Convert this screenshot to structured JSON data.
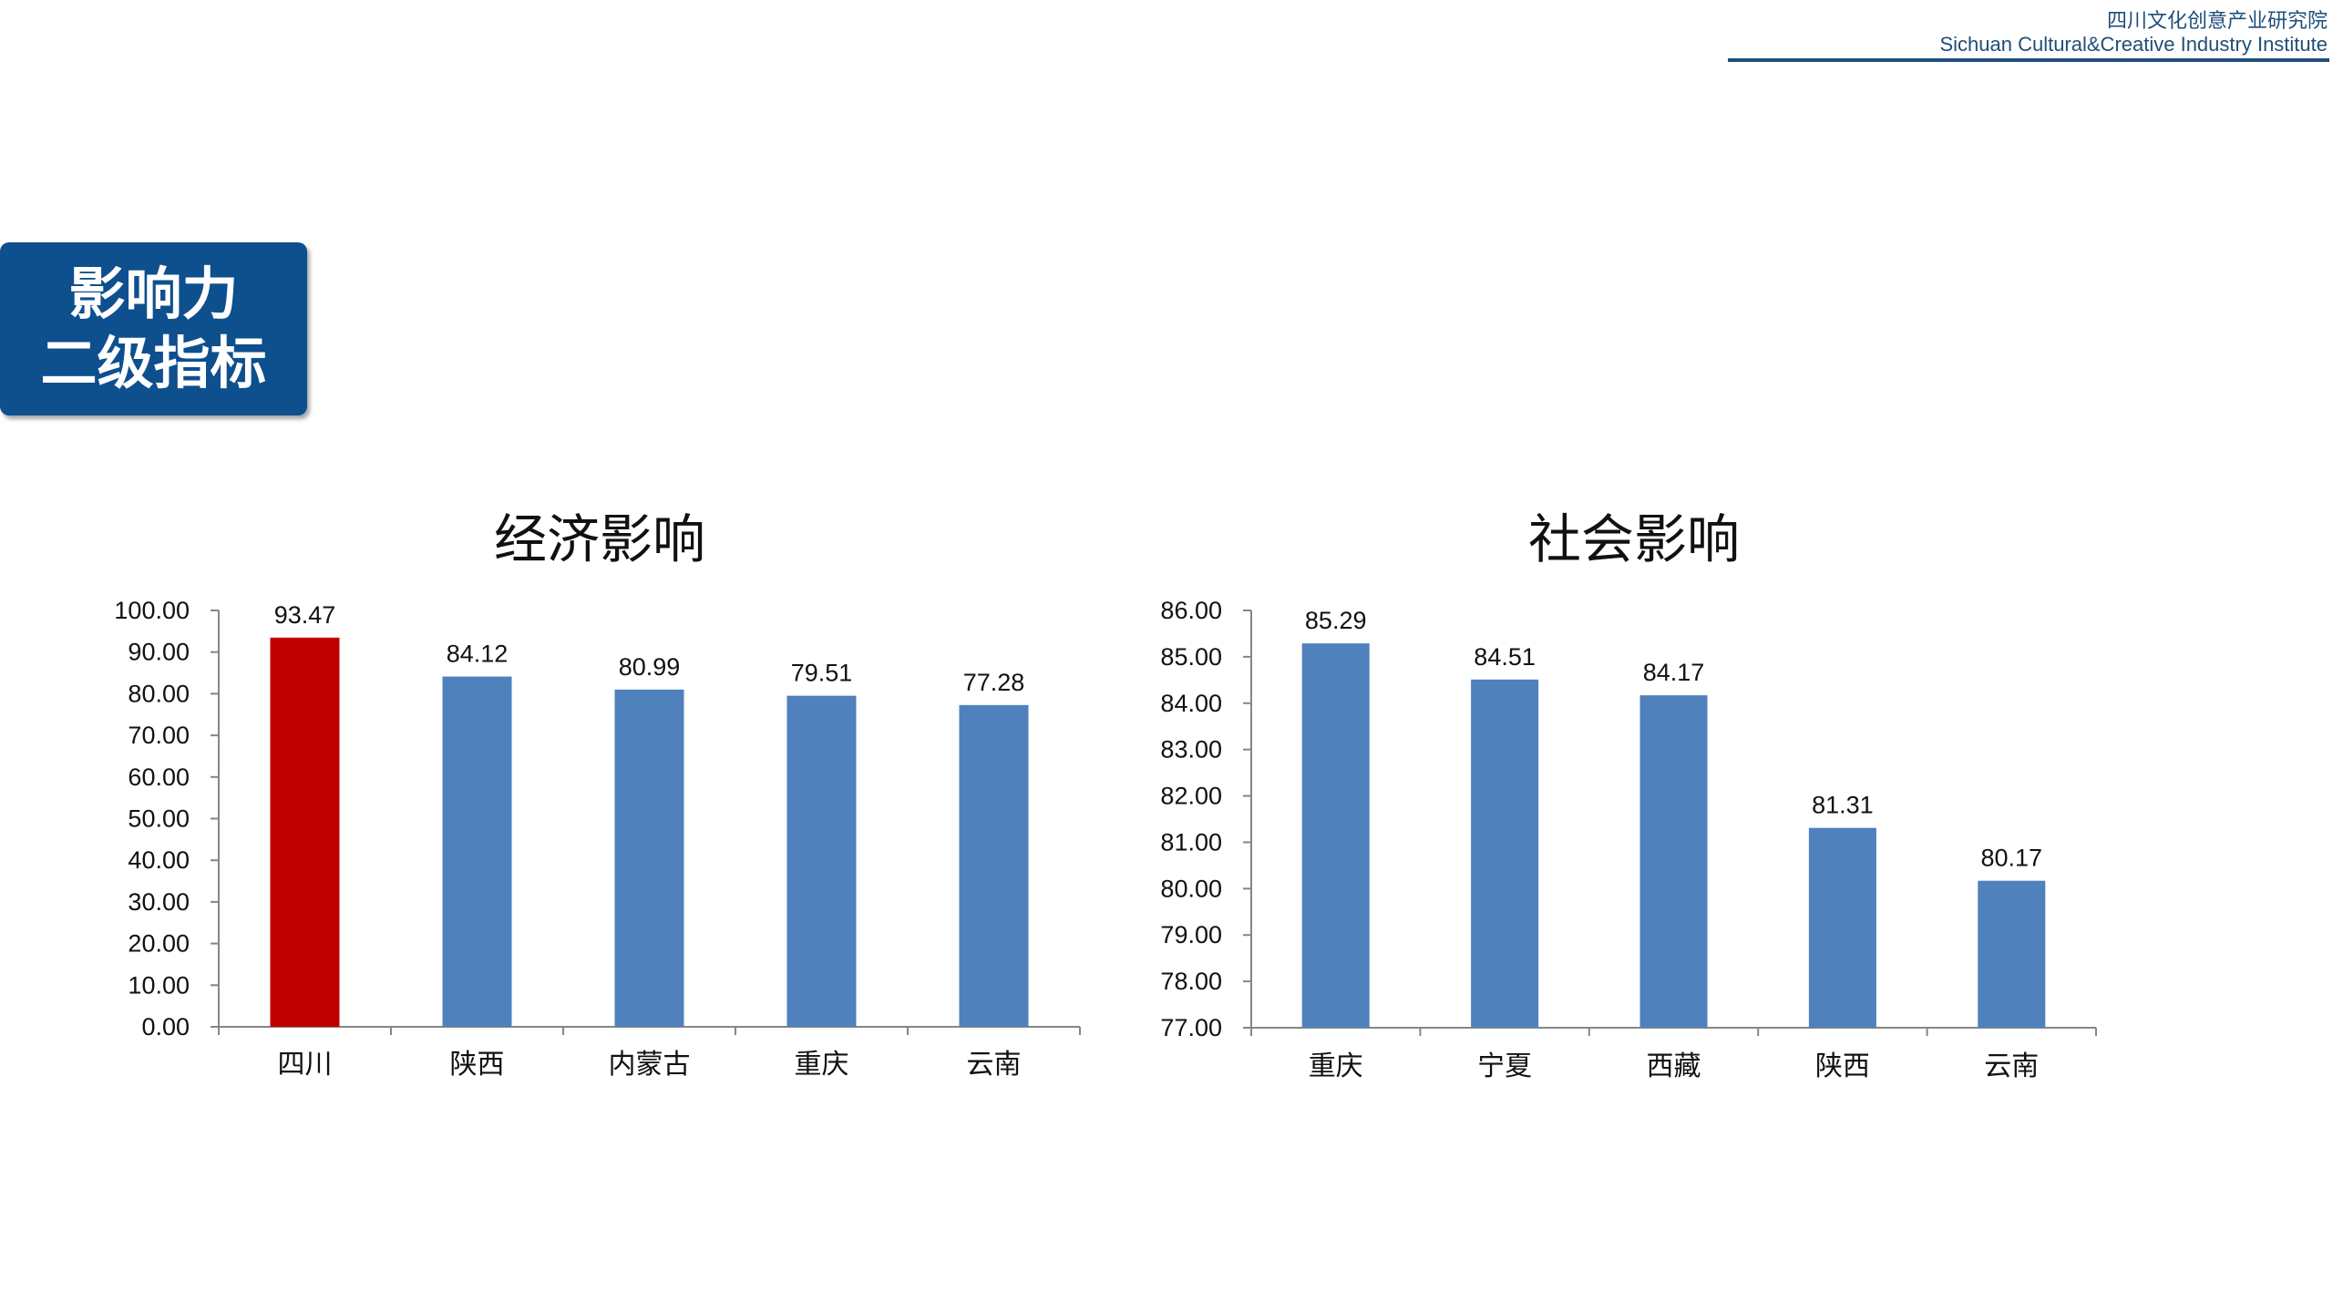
{
  "header": {
    "org_cn": "四川文化创意产业研究院",
    "org_en": "Sichuan Cultural&Creative Industry Institute",
    "accent_color": "#1f4e79"
  },
  "badge": {
    "line1": "影响力",
    "line2": "二级指标",
    "background": "#0e4f8e"
  },
  "chart_data": [
    {
      "type": "bar",
      "title": "经济影响",
      "categories": [
        "四川",
        "陕西",
        "内蒙古",
        "重庆",
        "云南"
      ],
      "values": [
        93.47,
        84.12,
        80.99,
        79.51,
        77.28
      ],
      "value_labels": [
        "93.47",
        "84.12",
        "80.99",
        "79.51",
        "77.28"
      ],
      "ylim": [
        0,
        100
      ],
      "yticks": [
        "0.00",
        "10.00",
        "20.00",
        "30.00",
        "40.00",
        "50.00",
        "60.00",
        "70.00",
        "80.00",
        "90.00",
        "100.00"
      ],
      "xlabel": "",
      "ylabel": "",
      "grid": false,
      "bar_color": "#4f81bd",
      "highlight_color": "#c00000",
      "highlight_index": 0
    },
    {
      "type": "bar",
      "title": "社会影响",
      "categories": [
        "重庆",
        "宁夏",
        "西藏",
        "陕西",
        "云南"
      ],
      "values": [
        85.29,
        84.51,
        84.17,
        81.31,
        80.17
      ],
      "value_labels": [
        "85.29",
        "84.51",
        "84.17",
        "81.31",
        "80.17"
      ],
      "ylim": [
        77,
        86
      ],
      "yticks": [
        "77.00",
        "78.00",
        "79.00",
        "80.00",
        "81.00",
        "82.00",
        "83.00",
        "84.00",
        "85.00",
        "86.00"
      ],
      "xlabel": "",
      "ylabel": "",
      "grid": false,
      "bar_color": "#4f81bd"
    }
  ]
}
